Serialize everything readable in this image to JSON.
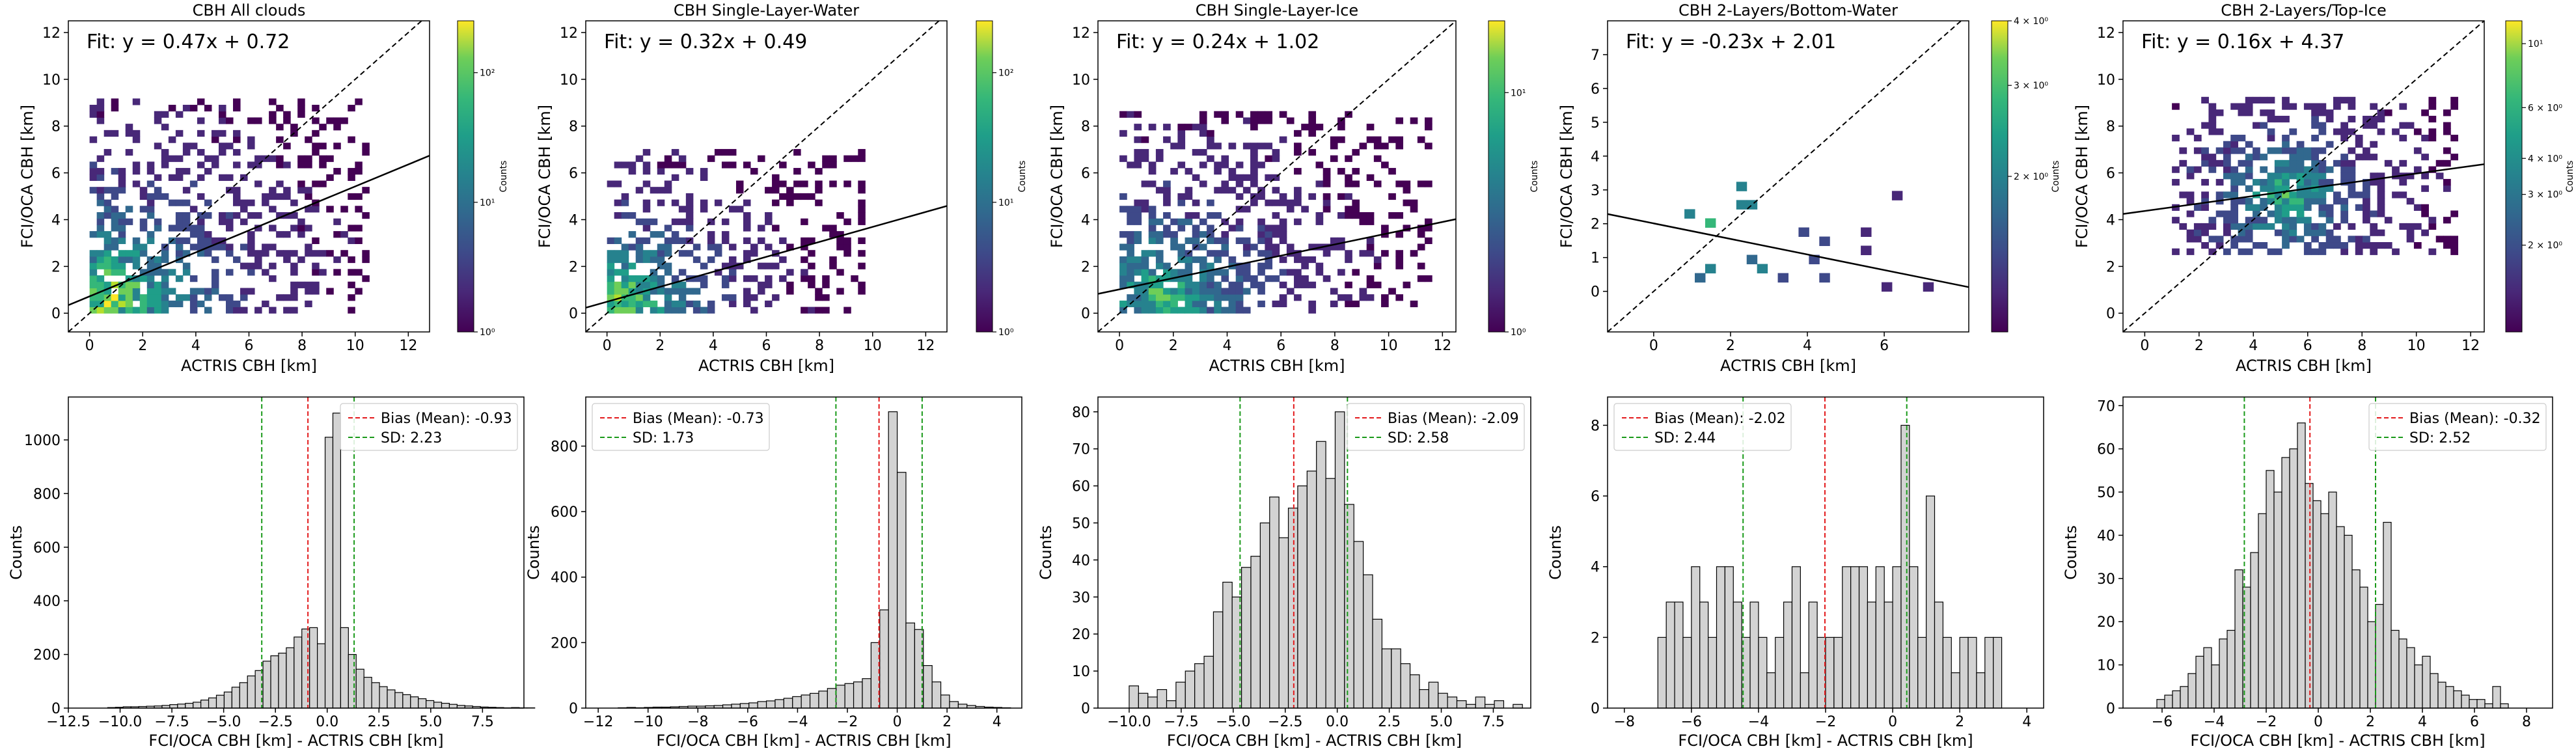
{
  "figure": {
    "colorbar_label": "Counts",
    "legend_bias_label": "Bias (Mean):",
    "legend_sd_label": "SD:",
    "counts_label": "Counts"
  },
  "chart_data": [
    {
      "type": "heatmap",
      "title": "CBH All clouds",
      "xlabel": "ACTRIS CBH [km]",
      "ylabel": "FCI/OCA CBH [km]",
      "xlim": [
        -0.8,
        12.8
      ],
      "ylim": [
        -0.8,
        12.5
      ],
      "xticks": [
        "0",
        "2",
        "4",
        "6",
        "8",
        "10",
        "12"
      ],
      "yticks": [
        "0",
        "2",
        "4",
        "6",
        "8",
        "10",
        "12"
      ],
      "fit_text": "Fit: y = 0.47x + 0.72",
      "fit": {
        "slope": 0.47,
        "intercept": 0.72
      },
      "one_to_one": true,
      "colorbar": {
        "scale": "log",
        "ticks": [
          "10⁰",
          "10¹",
          "10²"
        ],
        "tick_exponents": [
          0,
          1,
          2
        ],
        "range_exponents": [
          0,
          2.4
        ]
      },
      "density": {
        "x_range": [
          0,
          10.5
        ],
        "y_range": [
          0,
          9
        ],
        "cluster": [
          0.6,
          0.5
        ],
        "spread": 3.2,
        "max_exp": 2.3
      }
    },
    {
      "type": "heatmap",
      "title": "CBH Single-Layer-Water",
      "xlabel": "ACTRIS CBH [km]",
      "ylabel": "FCI/OCA CBH [km]",
      "xlim": [
        -0.8,
        12.8
      ],
      "ylim": [
        -0.8,
        12.5
      ],
      "xticks": [
        "0",
        "2",
        "4",
        "6",
        "8",
        "10",
        "12"
      ],
      "yticks": [
        "0",
        "2",
        "4",
        "6",
        "8",
        "10",
        "12"
      ],
      "fit_text": "Fit: y = 0.32x + 0.49",
      "fit": {
        "slope": 0.32,
        "intercept": 0.49
      },
      "one_to_one": true,
      "colorbar": {
        "scale": "log",
        "ticks": [
          "10⁰",
          "10¹",
          "10²"
        ],
        "tick_exponents": [
          0,
          1,
          2
        ],
        "range_exponents": [
          0,
          2.4
        ]
      },
      "density": {
        "x_range": [
          0,
          9.5
        ],
        "y_range": [
          0,
          7
        ],
        "cluster": [
          0.5,
          0.4
        ],
        "spread": 2.4,
        "max_exp": 2.2
      }
    },
    {
      "type": "heatmap",
      "title": "CBH Single-Layer-Ice",
      "xlabel": "ACTRIS CBH [km]",
      "ylabel": "FCI/OCA CBH [km]",
      "xlim": [
        -0.8,
        12.5
      ],
      "ylim": [
        -0.8,
        12.5
      ],
      "xticks": [
        "0",
        "2",
        "4",
        "6",
        "8",
        "10",
        "12"
      ],
      "yticks": [
        "0",
        "2",
        "4",
        "6",
        "8",
        "10",
        "12"
      ],
      "fit_text": "Fit: y = 0.24x + 1.02",
      "fit": {
        "slope": 0.24,
        "intercept": 1.02
      },
      "one_to_one": true,
      "colorbar": {
        "scale": "log",
        "ticks": [
          "10⁰",
          "10¹"
        ],
        "tick_exponents": [
          0,
          1
        ],
        "range_exponents": [
          0,
          1.3
        ]
      },
      "density": {
        "x_range": [
          0,
          11.5
        ],
        "y_range": [
          0,
          8.5
        ],
        "cluster": [
          1.5,
          0.6
        ],
        "spread": 3.0,
        "max_exp": 1.2
      }
    },
    {
      "type": "heatmap",
      "title": "CBH 2-Layers/Bottom-Water",
      "xlabel": "ACTRIS CBH [km]",
      "ylabel": "FCI/OCA CBH [km]",
      "xlim": [
        -1.2,
        8.2
      ],
      "ylim": [
        -1.2,
        8.0
      ],
      "xticks": [
        "0",
        "2",
        "4",
        "6"
      ],
      "yticks": [
        "0",
        "1",
        "2",
        "3",
        "4",
        "5",
        "6",
        "7"
      ],
      "fit_text": "Fit: y = -0.23x + 2.01",
      "fit": {
        "slope": -0.23,
        "intercept": 2.01
      },
      "one_to_one": true,
      "colorbar": {
        "scale": "log",
        "ticks": [
          "2 × 10⁰",
          "3 × 10⁰",
          "4 × 10⁰"
        ],
        "tick_values": [
          2,
          3,
          4
        ],
        "range_values": [
          1,
          4
        ]
      },
      "density": {
        "x_range": [
          0.8,
          7.2
        ],
        "y_range": [
          0,
          3.5
        ],
        "cluster": [
          1.6,
          2.0
        ],
        "spread": 2.5,
        "max_exp": 0.6,
        "sparse": true
      }
    },
    {
      "type": "heatmap",
      "title": "CBH 2-Layers/Top-Ice",
      "xlabel": "ACTRIS CBH [km]",
      "ylabel": "FCI/OCA CBH [km]",
      "xlim": [
        -0.8,
        12.5
      ],
      "ylim": [
        -0.8,
        12.5
      ],
      "xticks": [
        "0",
        "2",
        "4",
        "6",
        "8",
        "10",
        "12"
      ],
      "yticks": [
        "0",
        "2",
        "4",
        "6",
        "8",
        "10",
        "12"
      ],
      "fit_text": "Fit: y = 0.16x + 4.37",
      "fit": {
        "slope": 0.16,
        "intercept": 4.37
      },
      "one_to_one": true,
      "colorbar": {
        "scale": "log",
        "ticks": [
          "2 × 10⁰",
          "3 × 10⁰",
          "4 × 10⁰",
          "6 × 10⁰",
          "10¹"
        ],
        "tick_values": [
          2,
          3,
          4,
          6,
          10
        ],
        "range_values": [
          1,
          12
        ]
      },
      "density": {
        "x_range": [
          1,
          11.5
        ],
        "y_range": [
          2.5,
          9
        ],
        "cluster": [
          5,
          5
        ],
        "spread": 2.2,
        "max_exp": 1.0
      }
    },
    {
      "type": "bar",
      "subtype": "histogram",
      "xlabel": "FCI/OCA CBH [km] - ACTRIS CBH [km]",
      "ylabel": "Counts",
      "xlim": [
        -12.5,
        9.5
      ],
      "ylim": [
        0,
        1160
      ],
      "xticks": [
        -12.5,
        -10.0,
        -7.5,
        -5.0,
        -2.5,
        0.0,
        2.5,
        5.0,
        7.5
      ],
      "xtick_labels": [
        "−12.5",
        "−10.0",
        "−7.5",
        "−5.0",
        "−2.5",
        "0.0",
        "2.5",
        "5.0",
        "7.5"
      ],
      "yticks": [
        0,
        200,
        400,
        600,
        800,
        1000
      ],
      "bin_start": -10.6,
      "bin_width": 0.375,
      "values": [
        2,
        3,
        5,
        5,
        6,
        7,
        8,
        10,
        13,
        15,
        18,
        22,
        30,
        38,
        48,
        60,
        78,
        95,
        120,
        140,
        175,
        195,
        205,
        225,
        265,
        295,
        300,
        240,
        1010,
        1100,
        300,
        200,
        145,
        115,
        95,
        80,
        68,
        58,
        50,
        42,
        35,
        28,
        22,
        18,
        14,
        10,
        8,
        6,
        4,
        3,
        2,
        1,
        2,
        1,
        1
      ],
      "bias": -0.93,
      "sd": 2.23,
      "legend": {
        "bias": "-0.93",
        "sd": "2.23",
        "placement": "top-right"
      }
    },
    {
      "type": "bar",
      "subtype": "histogram",
      "xlabel": "FCI/OCA CBH [km] - ACTRIS CBH [km]",
      "ylabel": "Counts",
      "xlim": [
        -12.5,
        5
      ],
      "ylim": [
        0,
        950
      ],
      "xticks": [
        -12,
        -10,
        -8,
        -6,
        -4,
        -2,
        0,
        2,
        4
      ],
      "xtick_labels": [
        "−12",
        "−10",
        "−8",
        "−6",
        "−4",
        "−2",
        "0",
        "2",
        "4"
      ],
      "yticks": [
        0,
        200,
        400,
        600,
        800
      ],
      "bin_start": -11.2,
      "bin_width": 0.35,
      "values": [
        1,
        2,
        1,
        2,
        3,
        3,
        4,
        5,
        6,
        6,
        7,
        8,
        10,
        12,
        14,
        16,
        20,
        22,
        26,
        30,
        35,
        40,
        45,
        52,
        60,
        70,
        75,
        80,
        90,
        200,
        300,
        905,
        720,
        260,
        240,
        130,
        80,
        40,
        20,
        12,
        8,
        5,
        3,
        2,
        1
      ],
      "bias": -0.73,
      "sd": 1.73,
      "legend": {
        "bias": "-0.73",
        "sd": "1.73",
        "placement": "top-left"
      }
    },
    {
      "type": "bar",
      "subtype": "histogram",
      "xlabel": "FCI/OCA CBH [km] - ACTRIS CBH [km]",
      "ylabel": "Counts",
      "xlim": [
        -11.5,
        9.3
      ],
      "ylim": [
        0,
        84
      ],
      "xticks": [
        -10.0,
        -7.5,
        -5.0,
        -2.5,
        0.0,
        2.5,
        5.0,
        7.5
      ],
      "xtick_labels": [
        "−10.0",
        "−7.5",
        "−5.0",
        "−2.5",
        "0.0",
        "2.5",
        "5.0",
        "7.5"
      ],
      "yticks": [
        0,
        10,
        20,
        30,
        40,
        50,
        60,
        70,
        80
      ],
      "bin_start": -10.0,
      "bin_width": 0.45,
      "values": [
        6,
        4,
        3,
        5,
        2,
        7,
        10,
        12,
        14,
        26,
        34,
        30,
        38,
        41,
        50,
        57,
        46,
        54,
        60,
        64,
        72,
        62,
        80,
        55,
        45,
        36,
        24,
        16,
        16,
        12,
        9,
        5,
        7,
        4,
        3,
        2,
        1,
        3,
        1,
        2,
        0,
        1
      ],
      "bias": -2.09,
      "sd": 2.58,
      "legend": {
        "bias": "-2.09",
        "sd": "2.58",
        "placement": "top-right"
      }
    },
    {
      "type": "bar",
      "subtype": "histogram",
      "xlabel": "FCI/OCA CBH [km] - ACTRIS CBH [km]",
      "ylabel": "Counts",
      "xlim": [
        -8.5,
        4.5
      ],
      "ylim": [
        0,
        8.8
      ],
      "xticks": [
        -8,
        -6,
        -4,
        -2,
        0,
        2,
        4
      ],
      "xtick_labels": [
        "−8",
        "−6",
        "−4",
        "−2",
        "0",
        "2",
        "4"
      ],
      "yticks": [
        0,
        2,
        4,
        6,
        8
      ],
      "bin_start": -7.0,
      "bin_width": 0.25,
      "values": [
        2,
        3,
        3,
        2,
        4,
        3,
        2,
        4,
        4,
        3,
        2,
        3,
        2,
        1,
        2,
        3,
        4,
        1,
        3,
        2,
        2,
        2,
        4,
        4,
        4,
        3,
        4,
        3,
        4,
        8,
        4,
        2,
        6,
        3,
        2,
        1,
        2,
        2,
        1,
        2,
        2
      ],
      "bias": -2.02,
      "sd": 2.44,
      "legend": {
        "bias": "-2.02",
        "sd": "2.44",
        "placement": "top-left"
      }
    },
    {
      "type": "bar",
      "subtype": "histogram",
      "xlabel": "FCI/OCA CBH [km] - ACTRIS CBH [km]",
      "ylabel": "Counts",
      "xlim": [
        -7.5,
        9
      ],
      "ylim": [
        0,
        72
      ],
      "xticks": [
        -6,
        -4,
        -2,
        0,
        2,
        4,
        6,
        8
      ],
      "xtick_labels": [
        "−6",
        "−4",
        "−2",
        "0",
        "2",
        "4",
        "6",
        "8"
      ],
      "yticks": [
        0,
        10,
        20,
        30,
        40,
        50,
        60,
        70
      ],
      "bin_start": -6.2,
      "bin_width": 0.3,
      "values": [
        2,
        3,
        4,
        5,
        8,
        12,
        14,
        10,
        16,
        18,
        32,
        28,
        36,
        45,
        55,
        50,
        58,
        60,
        66,
        52,
        48,
        45,
        50,
        42,
        40,
        32,
        28,
        20,
        24,
        43,
        18,
        16,
        14,
        10,
        12,
        8,
        6,
        5,
        4,
        3,
        2,
        2,
        1,
        5,
        1
      ],
      "bias": -0.32,
      "sd": 2.52,
      "legend": {
        "bias": "-0.32",
        "sd": "2.52",
        "placement": "top-right"
      }
    }
  ]
}
